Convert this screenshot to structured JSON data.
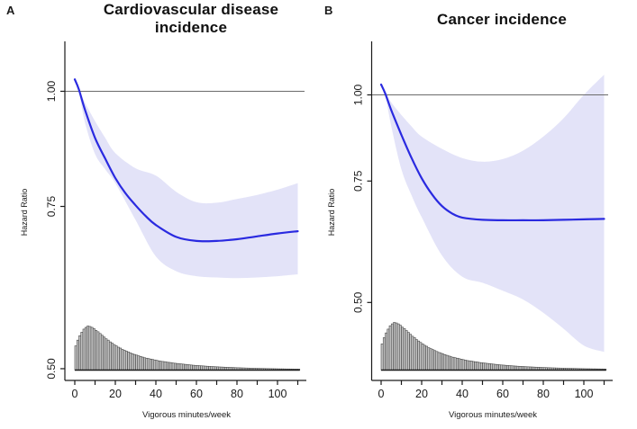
{
  "figure": {
    "background": "#ffffff",
    "panel_labels": [
      "A",
      "B"
    ]
  },
  "colors": {
    "curve": "#2a2ae0",
    "band": "#e3e3f8",
    "reference_line": "#6b6b6b",
    "axis": "#1a1a1a",
    "text": "#1a1a1a",
    "histogram_fill": "#c6c6c6",
    "histogram_stroke": "#454545",
    "background": "#ffffff"
  },
  "exposure_histogram": {
    "label": "vigorous-minutes-distribution",
    "bin_start": 0,
    "bin_width_minutes": 1,
    "heights_fraction_of_max": [
      0.55,
      0.68,
      0.78,
      0.86,
      0.93,
      0.97,
      1.0,
      0.99,
      0.97,
      0.94,
      0.9,
      0.87,
      0.83,
      0.79,
      0.75,
      0.71,
      0.68,
      0.64,
      0.61,
      0.58,
      0.55,
      0.52,
      0.5,
      0.47,
      0.45,
      0.43,
      0.41,
      0.39,
      0.37,
      0.355,
      0.34,
      0.325,
      0.31,
      0.295,
      0.28,
      0.27,
      0.26,
      0.25,
      0.24,
      0.23,
      0.22,
      0.21,
      0.2,
      0.195,
      0.19,
      0.18,
      0.175,
      0.17,
      0.16,
      0.155,
      0.15,
      0.145,
      0.14,
      0.135,
      0.13,
      0.125,
      0.12,
      0.115,
      0.11,
      0.107,
      0.104,
      0.1,
      0.097,
      0.094,
      0.09,
      0.087,
      0.084,
      0.081,
      0.079,
      0.076,
      0.074,
      0.071,
      0.069,
      0.067,
      0.065,
      0.063,
      0.061,
      0.059,
      0.057,
      0.055,
      0.053,
      0.052,
      0.05,
      0.049,
      0.047,
      0.046,
      0.044,
      0.043,
      0.042,
      0.04,
      0.039,
      0.038,
      0.037,
      0.036,
      0.035,
      0.034,
      0.033,
      0.032,
      0.031,
      0.03,
      0.029,
      0.028,
      0.028,
      0.027,
      0.026,
      0.026,
      0.025,
      0.025,
      0.024,
      0.024,
      0.023
    ]
  },
  "chart_data": [
    {
      "type": "line",
      "panel_label": "A",
      "title": "Cardiovascular disease incidence",
      "title_lines": [
        "Cardiovascular disease",
        "incidence"
      ],
      "xlabel": "Vigorous minutes/week",
      "ylabel": "Hazard Ratio",
      "y_scale": "log",
      "xlim": [
        0,
        112
      ],
      "ylim": [
        0.49,
        1.14
      ],
      "x_ticks_all": [
        0,
        10,
        20,
        30,
        40,
        50,
        60,
        70,
        80,
        90,
        100,
        110
      ],
      "x_ticks_major": [
        0,
        20,
        40,
        60,
        80,
        100
      ],
      "y_ticks": [
        1.0,
        0.75,
        0.5
      ],
      "y_tick_labels": [
        "1.00",
        "0.75",
        "0.50"
      ],
      "reference_line_hr": 1.0,
      "series": [
        {
          "name": "hazard-ratio",
          "x": [
            0,
            2,
            5,
            10,
            15,
            20,
            25,
            30,
            35,
            40,
            50,
            60,
            70,
            80,
            90,
            100,
            110
          ],
          "y": [
            1.03,
            1.005,
            0.955,
            0.89,
            0.845,
            0.805,
            0.775,
            0.752,
            0.732,
            0.716,
            0.695,
            0.688,
            0.688,
            0.691,
            0.696,
            0.701,
            0.705
          ]
        }
      ],
      "band": {
        "name": "95%-confidence-interval",
        "x": [
          0,
          2,
          5,
          10,
          15,
          20,
          30,
          40,
          50,
          60,
          70,
          80,
          90,
          100,
          110
        ],
        "upper": [
          1.035,
          1.007,
          0.972,
          0.928,
          0.89,
          0.857,
          0.825,
          0.81,
          0.778,
          0.758,
          0.757,
          0.764,
          0.772,
          0.782,
          0.795
        ],
        "lower": [
          1.028,
          1.0,
          0.925,
          0.855,
          0.823,
          0.795,
          0.725,
          0.662,
          0.638,
          0.63,
          0.628,
          0.627,
          0.628,
          0.63,
          0.633
        ]
      },
      "histogram_ref": "exposure_histogram"
    },
    {
      "type": "line",
      "panel_label": "B",
      "title": "Cancer incidence",
      "title_lines": [
        "Cancer incidence"
      ],
      "xlabel": "Vigorous minutes/week",
      "ylabel": "Hazard Ratio",
      "y_scale": "log",
      "xlim": [
        0,
        112
      ],
      "ylim": [
        0.37,
        1.14
      ],
      "x_ticks_all": [
        0,
        10,
        20,
        30,
        40,
        50,
        60,
        70,
        80,
        90,
        100,
        110
      ],
      "x_ticks_major": [
        0,
        20,
        40,
        60,
        80,
        100
      ],
      "y_ticks": [
        1.0,
        0.75,
        0.5
      ],
      "y_tick_labels": [
        "1.00",
        "0.75",
        "0.50"
      ],
      "reference_line_hr": 1.0,
      "series": [
        {
          "name": "hazard-ratio",
          "x": [
            0,
            2,
            5,
            10,
            15,
            20,
            25,
            30,
            35,
            40,
            50,
            60,
            70,
            80,
            90,
            100,
            110
          ],
          "y": [
            1.035,
            1.005,
            0.95,
            0.875,
            0.81,
            0.757,
            0.718,
            0.69,
            0.673,
            0.664,
            0.659,
            0.658,
            0.658,
            0.658,
            0.659,
            0.66,
            0.661
          ]
        }
      ],
      "band": {
        "name": "95%-confidence-interval",
        "x": [
          0,
          2,
          5,
          10,
          15,
          20,
          30,
          40,
          50,
          60,
          70,
          80,
          90,
          100,
          110
        ],
        "upper": [
          1.04,
          1.01,
          0.975,
          0.935,
          0.9,
          0.87,
          0.835,
          0.81,
          0.8,
          0.807,
          0.83,
          0.87,
          0.925,
          1.0,
          1.07
        ],
        "lower": [
          1.03,
          1.0,
          0.9,
          0.78,
          0.715,
          0.665,
          0.585,
          0.545,
          0.534,
          0.52,
          0.505,
          0.483,
          0.458,
          0.433,
          0.424
        ]
      },
      "histogram_ref": "exposure_histogram"
    }
  ]
}
